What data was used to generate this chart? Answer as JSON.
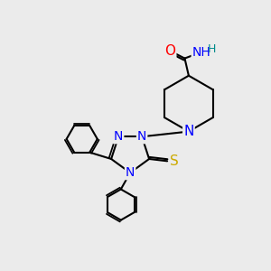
{
  "bg_color": "#ebebeb",
  "atom_colors": {
    "C": "#000000",
    "N": "#0000ff",
    "O": "#ff0000",
    "S": "#ccaa00",
    "H": "#008b8b"
  },
  "bond_color": "#000000",
  "bond_width": 1.5,
  "font_size_atom": 10,
  "xlim": [
    0,
    10
  ],
  "ylim": [
    0,
    10
  ]
}
